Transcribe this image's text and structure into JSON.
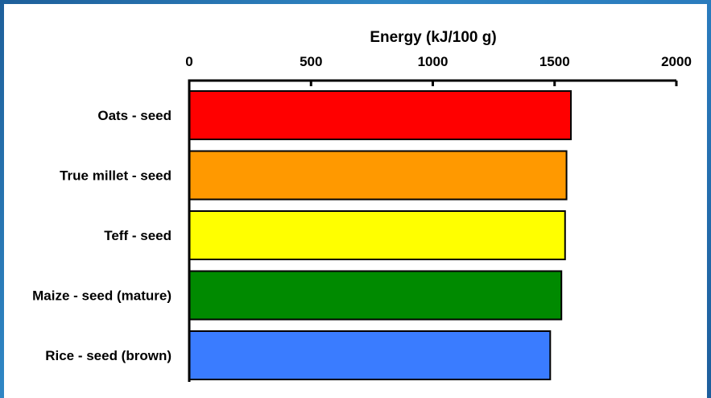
{
  "chart_data": {
    "type": "bar",
    "orientation": "horizontal",
    "xlabel": "Energy (kJ/100 g)",
    "xlabel_position": "top",
    "xlim": [
      0,
      2000
    ],
    "xticks": [
      "0",
      "500",
      "1000",
      "1500",
      "2000"
    ],
    "categories": [
      "Oats - seed",
      "True millet - seed",
      "Teff - seed",
      "Maize - seed (mature)",
      "Rice - seed (brown)"
    ],
    "values": [
      1567,
      1549,
      1543,
      1528,
      1482
    ],
    "colors": [
      "#ff0000",
      "#ff9900",
      "#ffff00",
      "#008a00",
      "#3a7cff"
    ],
    "grid": false
  }
}
